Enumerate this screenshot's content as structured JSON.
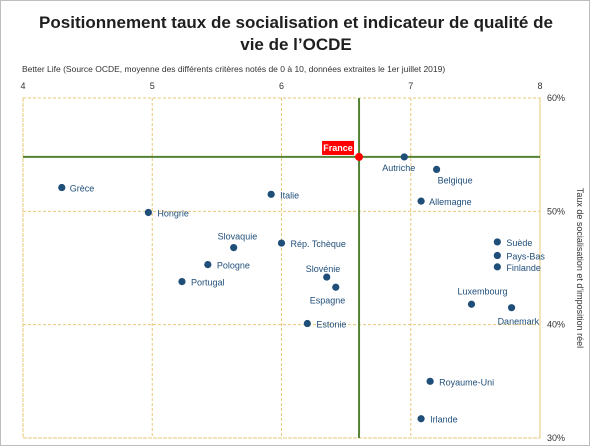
{
  "chart_data": {
    "type": "scatter",
    "title_line1": "Positionnement taux de socialisation et indicateur de qualité de",
    "title_line2": "vie de l’OCDE",
    "subtitle": "Better Life (Source OCDE, moyenne des différents critères notés de 0 à 10, données extraites le 1er juillet 2019)",
    "xlabel": "",
    "ylabel": "Taux de socialisation et d'imposition réel",
    "xlim": [
      4,
      8
    ],
    "ylim": [
      30,
      60
    ],
    "x_ticks": [
      "4",
      "5",
      "6",
      "7",
      "8"
    ],
    "y_ticks": [
      "30%",
      "40%",
      "50%",
      "60%"
    ],
    "grid": true,
    "reference_point": {
      "label": "France",
      "x": 6.6,
      "y": 54.8
    },
    "points": [
      {
        "label": "France",
        "x": 6.6,
        "y": 54.8
      },
      {
        "label": "Autriche",
        "x": 6.95,
        "y": 54.8
      },
      {
        "label": "Belgique",
        "x": 7.2,
        "y": 53.7
      },
      {
        "label": "Allemagne",
        "x": 7.08,
        "y": 50.9
      },
      {
        "label": "Grèce",
        "x": 4.3,
        "y": 52.1
      },
      {
        "label": "Italie",
        "x": 5.92,
        "y": 51.5
      },
      {
        "label": "Hongrie",
        "x": 4.97,
        "y": 49.9
      },
      {
        "label": "Slovaquie",
        "x": 5.63,
        "y": 46.8
      },
      {
        "label": "Rép. Tchèque",
        "x": 6.0,
        "y": 47.2
      },
      {
        "label": "Pologne",
        "x": 5.43,
        "y": 45.3
      },
      {
        "label": "Portugal",
        "x": 5.23,
        "y": 43.8
      },
      {
        "label": "Slovénie",
        "x": 6.35,
        "y": 44.2
      },
      {
        "label": "Espagne",
        "x": 6.42,
        "y": 43.3
      },
      {
        "label": "Estonie",
        "x": 6.2,
        "y": 40.1
      },
      {
        "label": "Suède",
        "x": 7.67,
        "y": 47.3
      },
      {
        "label": "Pays-Bas",
        "x": 7.67,
        "y": 46.1
      },
      {
        "label": "Finlande",
        "x": 7.67,
        "y": 45.1
      },
      {
        "label": "Luxembourg",
        "x": 7.47,
        "y": 41.8
      },
      {
        "label": "Danemark",
        "x": 7.78,
        "y": 41.5
      },
      {
        "label": "Royaume-Uni",
        "x": 7.15,
        "y": 35.0
      },
      {
        "label": "Irlande",
        "x": 7.08,
        "y": 31.7
      }
    ],
    "colors": {
      "point": "#1f4e79",
      "label": "#1f4e79",
      "france": "#ff0000",
      "grid": "#e8c87a",
      "reference_line": "#548235"
    }
  }
}
